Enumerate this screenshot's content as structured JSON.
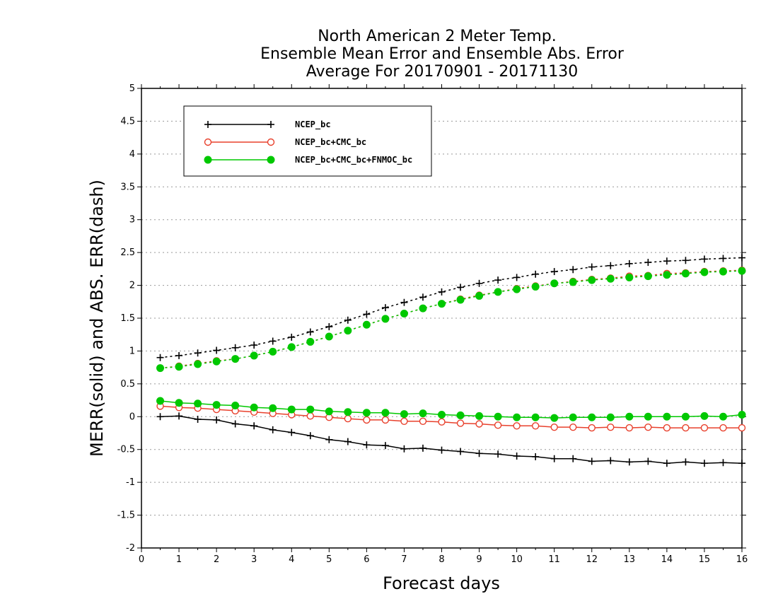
{
  "chart_data": {
    "type": "line",
    "title_lines": [
      "North American 2 Meter Temp.",
      "Ensemble Mean Error and Ensemble Abs. Error",
      "Average For 20170901 - 20171130"
    ],
    "xlabel": "Forecast days",
    "ylabel": "MERR(solid) and ABS. ERR(dash)",
    "xlim": [
      0,
      16
    ],
    "ylim": [
      -2,
      5
    ],
    "x_ticks": [
      0,
      1,
      2,
      3,
      4,
      5,
      6,
      7,
      8,
      9,
      10,
      11,
      12,
      13,
      14,
      15,
      16
    ],
    "y_ticks": [
      -2,
      -1.5,
      -1,
      -0.5,
      0,
      0.5,
      1,
      1.5,
      2,
      2.5,
      3,
      3.5,
      4,
      4.5,
      5
    ],
    "y_tick_labels": [
      "-2",
      "-1.5",
      "-1",
      "-0.5",
      "0",
      "0.5",
      "1",
      "1.5",
      "2",
      "2.5",
      "3",
      "3.5",
      "4",
      "4.5",
      "5"
    ],
    "grid": "horizontal dotted",
    "legend_position": "top-left",
    "x": [
      0.5,
      1,
      1.5,
      2,
      2.5,
      3,
      3.5,
      4,
      4.5,
      5,
      5.5,
      6,
      6.5,
      7,
      7.5,
      8,
      8.5,
      9,
      9.5,
      10,
      10.5,
      11,
      11.5,
      12,
      12.5,
      13,
      13.5,
      14,
      14.5,
      15,
      15.5,
      16
    ],
    "series": [
      {
        "name": "NCEP_bc",
        "color": "#000000",
        "marker": "plus",
        "merr": [
          0.0,
          0.01,
          -0.04,
          -0.05,
          -0.11,
          -0.14,
          -0.2,
          -0.24,
          -0.29,
          -0.35,
          -0.38,
          -0.43,
          -0.44,
          -0.49,
          -0.48,
          -0.51,
          -0.53,
          -0.56,
          -0.57,
          -0.6,
          -0.61,
          -0.64,
          -0.64,
          -0.68,
          -0.67,
          -0.69,
          -0.68,
          -0.71,
          -0.69,
          -0.71,
          -0.7,
          -0.71
        ],
        "abs_err": [
          0.9,
          0.93,
          0.97,
          1.01,
          1.05,
          1.09,
          1.15,
          1.21,
          1.29,
          1.37,
          1.47,
          1.56,
          1.66,
          1.74,
          1.82,
          1.9,
          1.97,
          2.03,
          2.08,
          2.12,
          2.17,
          2.21,
          2.24,
          2.28,
          2.3,
          2.33,
          2.35,
          2.37,
          2.38,
          2.4,
          2.41,
          2.42
        ]
      },
      {
        "name": "NCEP_bc+CMC_bc",
        "color": "#e8402c",
        "marker": "open-circle",
        "merr": [
          0.16,
          0.14,
          0.13,
          0.11,
          0.09,
          0.07,
          0.05,
          0.03,
          0.01,
          -0.01,
          -0.03,
          -0.05,
          -0.05,
          -0.07,
          -0.07,
          -0.08,
          -0.1,
          -0.11,
          -0.13,
          -0.14,
          -0.14,
          -0.16,
          -0.16,
          -0.17,
          -0.16,
          -0.17,
          -0.16,
          -0.17,
          -0.17,
          -0.17,
          -0.17,
          -0.17
        ],
        "abs_err": [
          0.74,
          0.77,
          0.81,
          0.85,
          0.88,
          0.93,
          0.99,
          1.06,
          1.14,
          1.22,
          1.31,
          1.4,
          1.49,
          1.57,
          1.65,
          1.72,
          1.79,
          1.85,
          1.9,
          1.95,
          1.99,
          2.03,
          2.06,
          2.09,
          2.11,
          2.14,
          2.15,
          2.18,
          2.19,
          2.21,
          2.22,
          2.23
        ]
      },
      {
        "name": "NCEP_bc+CMC_bc+FNMOC_bc",
        "color": "#00c800",
        "marker": "filled-circle",
        "merr": [
          0.24,
          0.21,
          0.2,
          0.18,
          0.17,
          0.14,
          0.13,
          0.11,
          0.11,
          0.08,
          0.07,
          0.06,
          0.06,
          0.04,
          0.05,
          0.03,
          0.02,
          0.01,
          0.0,
          -0.01,
          -0.01,
          -0.02,
          -0.01,
          -0.01,
          -0.01,
          0.0,
          0.0,
          0.0,
          0.0,
          0.01,
          0.0,
          0.03
        ],
        "abs_err": [
          0.74,
          0.76,
          0.8,
          0.84,
          0.88,
          0.93,
          0.99,
          1.06,
          1.14,
          1.22,
          1.31,
          1.4,
          1.49,
          1.57,
          1.65,
          1.72,
          1.78,
          1.84,
          1.9,
          1.94,
          1.98,
          2.03,
          2.05,
          2.08,
          2.1,
          2.12,
          2.14,
          2.16,
          2.18,
          2.2,
          2.21,
          2.22
        ]
      }
    ]
  }
}
